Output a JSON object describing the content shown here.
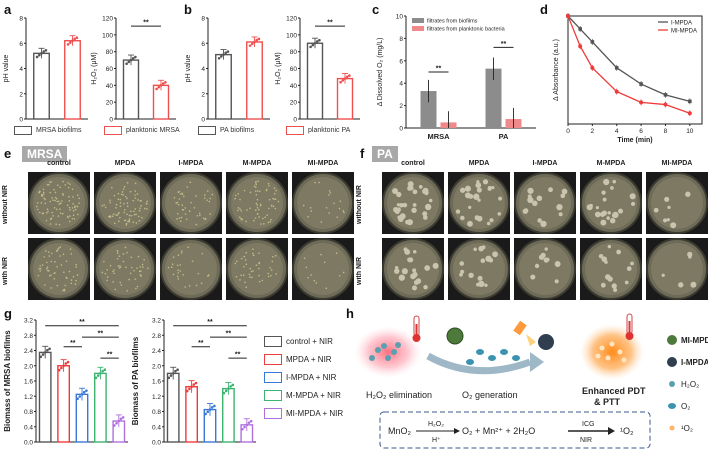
{
  "panels": {
    "a": "a",
    "b": "b",
    "c": "c",
    "d": "d",
    "e": "e",
    "f": "f",
    "g": "g",
    "h": "h"
  },
  "chart_data": [
    {
      "id": "a1",
      "type": "bar",
      "ylabel": "pH value",
      "ylim": [
        0,
        8
      ],
      "yticks": [
        0,
        2,
        4,
        6,
        8
      ],
      "series": [
        {
          "values": [
            5.2,
            6.2
          ],
          "colors": [
            "#555555",
            "#ef4f4f"
          ]
        }
      ],
      "sig": ""
    },
    {
      "id": "a2",
      "type": "bar",
      "ylabel": "H₂O₂ (μM)",
      "ylim": [
        0,
        120
      ],
      "yticks": [
        0,
        20,
        40,
        60,
        80,
        100,
        120
      ],
      "series": [
        {
          "values": [
            70,
            40
          ],
          "colors": [
            "#555555",
            "#ef4f4f"
          ]
        }
      ],
      "sig": "**"
    },
    {
      "id": "b1",
      "type": "bar",
      "ylabel": "pH value",
      "ylim": [
        0,
        8
      ],
      "yticks": [
        0,
        2,
        4,
        6,
        8
      ],
      "series": [
        {
          "values": [
            5.1,
            6.1
          ],
          "colors": [
            "#555555",
            "#ef4f4f"
          ]
        }
      ],
      "sig": ""
    },
    {
      "id": "b2",
      "type": "bar",
      "ylabel": "H₂O₂ (μM)",
      "ylim": [
        0,
        120
      ],
      "yticks": [
        0,
        20,
        40,
        60,
        80,
        100,
        120
      ],
      "series": [
        {
          "values": [
            90,
            48
          ],
          "colors": [
            "#555555",
            "#ef4f4f"
          ]
        }
      ],
      "sig": "**"
    },
    {
      "id": "c",
      "type": "bar",
      "ylabel": "Δ Dissolved O₂ (mg/L)",
      "ylim": [
        0,
        10
      ],
      "yticks": [
        0,
        2,
        4,
        6,
        8,
        10
      ],
      "categories": [
        "MRSA",
        "PA"
      ],
      "series": [
        {
          "name": "filtrates from biofilms",
          "values": [
            3.3,
            5.3
          ],
          "color": "#8c8c8c"
        },
        {
          "name": "filtrates from planktonic bacteria",
          "values": [
            0.5,
            0.8
          ],
          "color": "#f08a8a"
        }
      ],
      "sig": "**"
    },
    {
      "id": "d",
      "type": "line",
      "ylabel": "Δ Absorbance (a.u.)",
      "xlabel": "Time (min)",
      "xlim": [
        0,
        11
      ],
      "xticks": [
        0,
        2,
        4,
        6,
        8,
        10
      ],
      "ylim": [
        -1,
        0
      ],
      "series": [
        {
          "name": "I-MPDA",
          "color": "#555555",
          "x": [
            0,
            1,
            2,
            4,
            6,
            8,
            10
          ],
          "y": [
            0,
            -0.12,
            -0.24,
            -0.48,
            -0.63,
            -0.73,
            -0.79
          ]
        },
        {
          "name": "MI-MPDA",
          "color": "#ef3b3b",
          "x": [
            0,
            1,
            2,
            4,
            6,
            8,
            10
          ],
          "y": [
            0,
            -0.28,
            -0.48,
            -0.7,
            -0.8,
            -0.82,
            -0.9
          ]
        }
      ]
    },
    {
      "id": "g1",
      "type": "bar",
      "ylabel": "Biomass of MRSA biofilms",
      "ylim": [
        0,
        3.2
      ],
      "yticks": [
        0.0,
        0.4,
        0.8,
        1.2,
        1.6,
        2.0,
        2.4,
        2.8,
        3.2
      ],
      "series": [
        {
          "values": [
            2.35,
            2.0,
            1.25,
            1.8,
            0.55
          ],
          "colors": [
            "#555555",
            "#ef3b3b",
            "#3a78d8",
            "#3cb371",
            "#b070e0"
          ]
        }
      ],
      "sig": "**"
    },
    {
      "id": "g2",
      "type": "bar",
      "ylabel": "Biomass of PA biofilms",
      "ylim": [
        0,
        3.2
      ],
      "yticks": [
        0.0,
        0.4,
        0.8,
        1.2,
        1.6,
        2.0,
        2.4,
        2.8,
        3.2
      ],
      "series": [
        {
          "values": [
            1.8,
            1.45,
            0.85,
            1.4,
            0.45
          ],
          "colors": [
            "#555555",
            "#ef3b3b",
            "#3a78d8",
            "#3cb371",
            "#b070e0"
          ]
        }
      ],
      "sig": "**"
    }
  ],
  "legend_a": [
    "MRSA biofilms",
    "planktonic MRSA"
  ],
  "legend_b": [
    "PA biofilms",
    "planktonic PA"
  ],
  "legend_g": [
    "control + NIR",
    "MPDA + NIR",
    "I-MPDA + NIR",
    "M-MPDA + NIR",
    "MI-MPDA + NIR"
  ],
  "legend_g_colors": [
    "#555555",
    "#ef3b3b",
    "#3a78d8",
    "#3cb371",
    "#b070e0"
  ],
  "c_categories": [
    "MRSA",
    "PA"
  ],
  "d_legend": [
    "I-MPDA",
    "MI-MPDA"
  ],
  "e": {
    "tag": "MRSA",
    "cols": [
      "control",
      "MPDA",
      "I-MPDA",
      "M-MPDA",
      "MI-MPDA"
    ],
    "rows": [
      "without NIR",
      "with NIR"
    ]
  },
  "f": {
    "tag": "PA",
    "cols": [
      "control",
      "MPDA",
      "I-MPDA",
      "M-MPDA",
      "MI-MPDA"
    ],
    "rows": [
      "without NIR",
      "with NIR"
    ]
  },
  "h": {
    "step1": "H₂O₂ elimination",
    "step2": "O₂ generation",
    "step3": "Enhanced PDT",
    "step3b": "& PTT",
    "legend": [
      "MI-MPDA",
      "I-MPDA",
      "H₂O₂",
      "O₂",
      "¹O₂"
    ],
    "eq_left": "MnO₂",
    "eq_top": "H₂O₂",
    "eq_bottom": "H⁺",
    "eq_mid": "O₂ + Mn²⁺ + 2H₂O",
    "eq_top2": "ICG",
    "eq_bottom2": "NIR",
    "eq_right": "¹O₂"
  }
}
